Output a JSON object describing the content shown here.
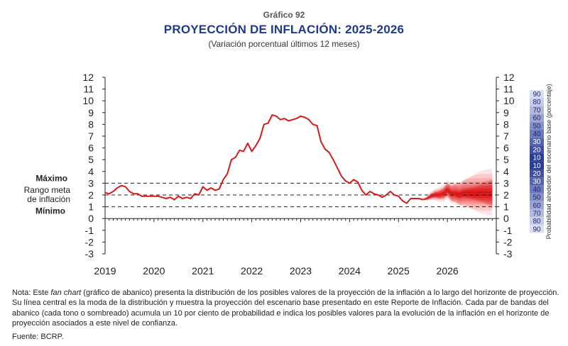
{
  "header": {
    "label": "Gráfico 92",
    "title": "PROYECCIÓN DE INFLACIÓN: 2025-2026",
    "subtitle": "(Variación porcentual últimos 12 meses)"
  },
  "chart_data": {
    "type": "line",
    "x_ticks": [
      "2019",
      "2020",
      "2021",
      "2022",
      "2023",
      "2024",
      "2025",
      "2026"
    ],
    "xlim": [
      "2019-01",
      "2026-12"
    ],
    "ylim": [
      -3,
      12
    ],
    "y_ticks": [
      -3,
      -2,
      -1,
      0,
      1,
      2,
      3,
      4,
      5,
      6,
      7,
      8,
      9,
      10,
      11,
      12
    ],
    "grid": false,
    "target_band": {
      "max": 3,
      "min": 1,
      "mid": 2,
      "label_max": "Máximo",
      "label_mid": "Rango meta de inflación",
      "label_min": "Mínimo"
    },
    "series": [
      {
        "color": "#d7191c",
        "points": [
          [
            "2019-01",
            2.2
          ],
          [
            "2019-02",
            2.1
          ],
          [
            "2019-03",
            2.3
          ],
          [
            "2019-04",
            2.6
          ],
          [
            "2019-05",
            2.8
          ],
          [
            "2019-06",
            2.7
          ],
          [
            "2019-07",
            2.3
          ],
          [
            "2019-08",
            2.1
          ],
          [
            "2019-09",
            2.1
          ],
          [
            "2019-10",
            1.9
          ],
          [
            "2019-11",
            1.9
          ],
          [
            "2019-12",
            1.9
          ],
          [
            "2020-01",
            1.9
          ],
          [
            "2020-02",
            1.9
          ],
          [
            "2020-03",
            1.8
          ],
          [
            "2020-04",
            1.7
          ],
          [
            "2020-05",
            1.8
          ],
          [
            "2020-06",
            1.6
          ],
          [
            "2020-07",
            1.9
          ],
          [
            "2020-08",
            1.7
          ],
          [
            "2020-09",
            1.8
          ],
          [
            "2020-10",
            1.7
          ],
          [
            "2020-11",
            2.1
          ],
          [
            "2020-12",
            2.0
          ],
          [
            "2021-01",
            2.7
          ],
          [
            "2021-02",
            2.4
          ],
          [
            "2021-03",
            2.6
          ],
          [
            "2021-04",
            2.4
          ],
          [
            "2021-05",
            2.5
          ],
          [
            "2021-06",
            3.3
          ],
          [
            "2021-07",
            3.8
          ],
          [
            "2021-08",
            5.0
          ],
          [
            "2021-09",
            5.2
          ],
          [
            "2021-10",
            5.8
          ],
          [
            "2021-11",
            5.7
          ],
          [
            "2021-12",
            6.4
          ],
          [
            "2022-01",
            5.7
          ],
          [
            "2022-02",
            6.2
          ],
          [
            "2022-03",
            6.8
          ],
          [
            "2022-04",
            8.0
          ],
          [
            "2022-05",
            8.1
          ],
          [
            "2022-06",
            8.8
          ],
          [
            "2022-07",
            8.7
          ],
          [
            "2022-08",
            8.4
          ],
          [
            "2022-09",
            8.5
          ],
          [
            "2022-10",
            8.3
          ],
          [
            "2022-11",
            8.4
          ],
          [
            "2022-12",
            8.5
          ],
          [
            "2023-01",
            8.7
          ],
          [
            "2023-02",
            8.6
          ],
          [
            "2023-03",
            8.4
          ],
          [
            "2023-04",
            8.0
          ],
          [
            "2023-05",
            7.9
          ],
          [
            "2023-06",
            6.5
          ],
          [
            "2023-07",
            5.9
          ],
          [
            "2023-08",
            5.6
          ],
          [
            "2023-09",
            5.0
          ],
          [
            "2023-10",
            4.3
          ],
          [
            "2023-11",
            3.6
          ],
          [
            "2023-12",
            3.2
          ],
          [
            "2024-01",
            3.0
          ],
          [
            "2024-02",
            3.3
          ],
          [
            "2024-03",
            3.1
          ],
          [
            "2024-04",
            2.4
          ],
          [
            "2024-05",
            2.0
          ],
          [
            "2024-06",
            2.3
          ],
          [
            "2024-07",
            2.1
          ],
          [
            "2024-08",
            2.0
          ],
          [
            "2024-09",
            1.8
          ],
          [
            "2024-10",
            2.0
          ],
          [
            "2024-11",
            2.3
          ],
          [
            "2024-12",
            2.0
          ],
          [
            "2025-01",
            1.9
          ],
          [
            "2025-02",
            1.5
          ],
          [
            "2025-03",
            1.3
          ],
          [
            "2025-04",
            1.7
          ],
          [
            "2025-05",
            1.7
          ],
          [
            "2025-06",
            1.7
          ],
          [
            "2025-07",
            1.6
          ]
        ]
      },
      {
        "color": "#e41a1c",
        "points": [
          [
            "2025-07",
            1.6
          ],
          [
            "2025-08",
            1.7
          ],
          [
            "2025-09",
            1.9
          ],
          [
            "2025-10",
            2.0
          ],
          [
            "2025-11",
            2.0
          ],
          [
            "2025-12",
            2.1
          ],
          [
            "2026-01",
            2.4
          ],
          [
            "2026-02",
            2.1
          ],
          [
            "2026-03",
            2.1
          ],
          [
            "2026-04",
            2.0
          ],
          [
            "2026-05",
            2.1
          ],
          [
            "2026-06",
            2.1
          ],
          [
            "2026-07",
            2.1
          ],
          [
            "2026-08",
            2.1
          ],
          [
            "2026-09",
            2.1
          ],
          [
            "2026-10",
            2.1
          ],
          [
            "2026-11",
            2.1
          ],
          [
            "2026-12",
            2.1
          ]
        ]
      }
    ],
    "fan": {
      "start": "2025-07",
      "end": "2026-12",
      "width_at_end_90": 2.0,
      "bands": [
        90,
        80,
        70,
        60,
        50,
        40,
        30,
        20,
        10
      ],
      "colors": [
        "#fde3e3",
        "#fbcaca",
        "#f8b0b0",
        "#f59393",
        "#f07575",
        "#ea5858",
        "#e43c3c",
        "#de2424",
        "#d41010"
      ]
    },
    "prob_legend": {
      "label": "Probabilidad alrededor del escenario base (porcentaje)",
      "values": [
        "90",
        "80",
        "70",
        "60",
        "50",
        "40",
        "30",
        "20",
        "10",
        "10",
        "20",
        "30",
        "40",
        "50",
        "60",
        "70",
        "80",
        "90"
      ],
      "colors": [
        "#d9def2",
        "#c6cde9",
        "#b1badf",
        "#9aa5d4",
        "#8390c9",
        "#6b7bbd",
        "#5466b1",
        "#3d50a3",
        "#283d94",
        "#283d94",
        "#3d50a3",
        "#5466b1",
        "#6b7bbd",
        "#8390c9",
        "#9aa5d4",
        "#b1badf",
        "#c6cde9",
        "#d9def2"
      ]
    }
  },
  "footer": {
    "note_prefix": "Nota: Este ",
    "note_em": "fan chart",
    "note_rest": " (gráfico de abanico) presenta la distribución de los posibles valores de la proyección de la inflación a lo largo del horizonte de proyección. Su línea central es la moda de la distribución y muestra la proyección del escenario base presentado en este Reporte de Inflación. Cada par de bandas del abanico (cada tono o sombreado) acumula un 10 por ciento de probabilidad e indica los posibles valores para la evolución de la inflación en el horizonte de proyección asociados a este nivel de confianza.",
    "source": "Fuente: BCRP."
  }
}
